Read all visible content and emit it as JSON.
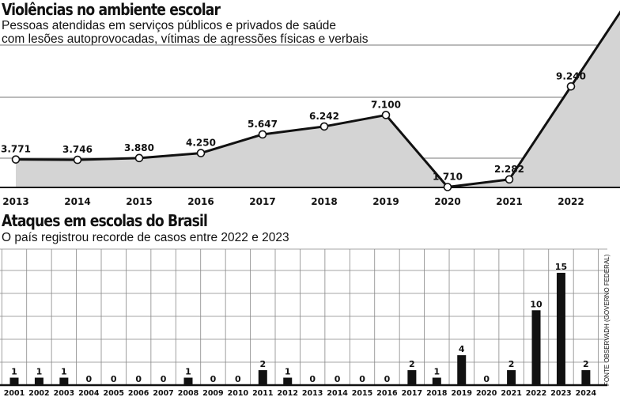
{
  "chart_data": [
    {
      "type": "area",
      "title": "Violências no ambiente escolar",
      "subtitle_line1": "Pessoas atendidas em serviços públicos e privados de saúde",
      "subtitle_line2": "com lesões autoprovocadas, vítimas de agressões físicas e verbais",
      "categories": [
        "2013",
        "2014",
        "2015",
        "2016",
        "2017",
        "2018",
        "2019",
        "2020",
        "2021",
        "2022"
      ],
      "values": [
        3771,
        3746,
        3880,
        4250,
        5647,
        6242,
        7100,
        1710,
        2282,
        9240
      ],
      "labels": [
        "3.771",
        "3.746",
        "3.880",
        "4.250",
        "5.647",
        "6.242",
        "7.100",
        "1.710",
        "2.282",
        "9.240"
      ],
      "grid": true,
      "colors": {
        "fill": "#d4d4d4",
        "line": "#111111"
      }
    },
    {
      "type": "bar",
      "title": "Ataques em escolas do Brasil",
      "subtitle": "O país registrou recorde de casos entre 2022 e 2023",
      "categories": [
        "2001",
        "2002",
        "2003",
        "2004",
        "2005",
        "2006",
        "2007",
        "2008",
        "2009",
        "2010",
        "2011",
        "2012",
        "2013",
        "2014",
        "2015",
        "2016",
        "2017",
        "2018",
        "2019",
        "2020",
        "2021",
        "2022",
        "2023",
        "2024"
      ],
      "values": [
        1,
        1,
        1,
        0,
        0,
        0,
        0,
        1,
        0,
        0,
        2,
        1,
        0,
        0,
        0,
        0,
        2,
        1,
        4,
        0,
        2,
        10,
        15,
        2
      ],
      "grid": true,
      "colors": {
        "bar": "#111111"
      }
    }
  ],
  "source": "FONTE OBSERVADH (GOVERNO FEDERAL)"
}
